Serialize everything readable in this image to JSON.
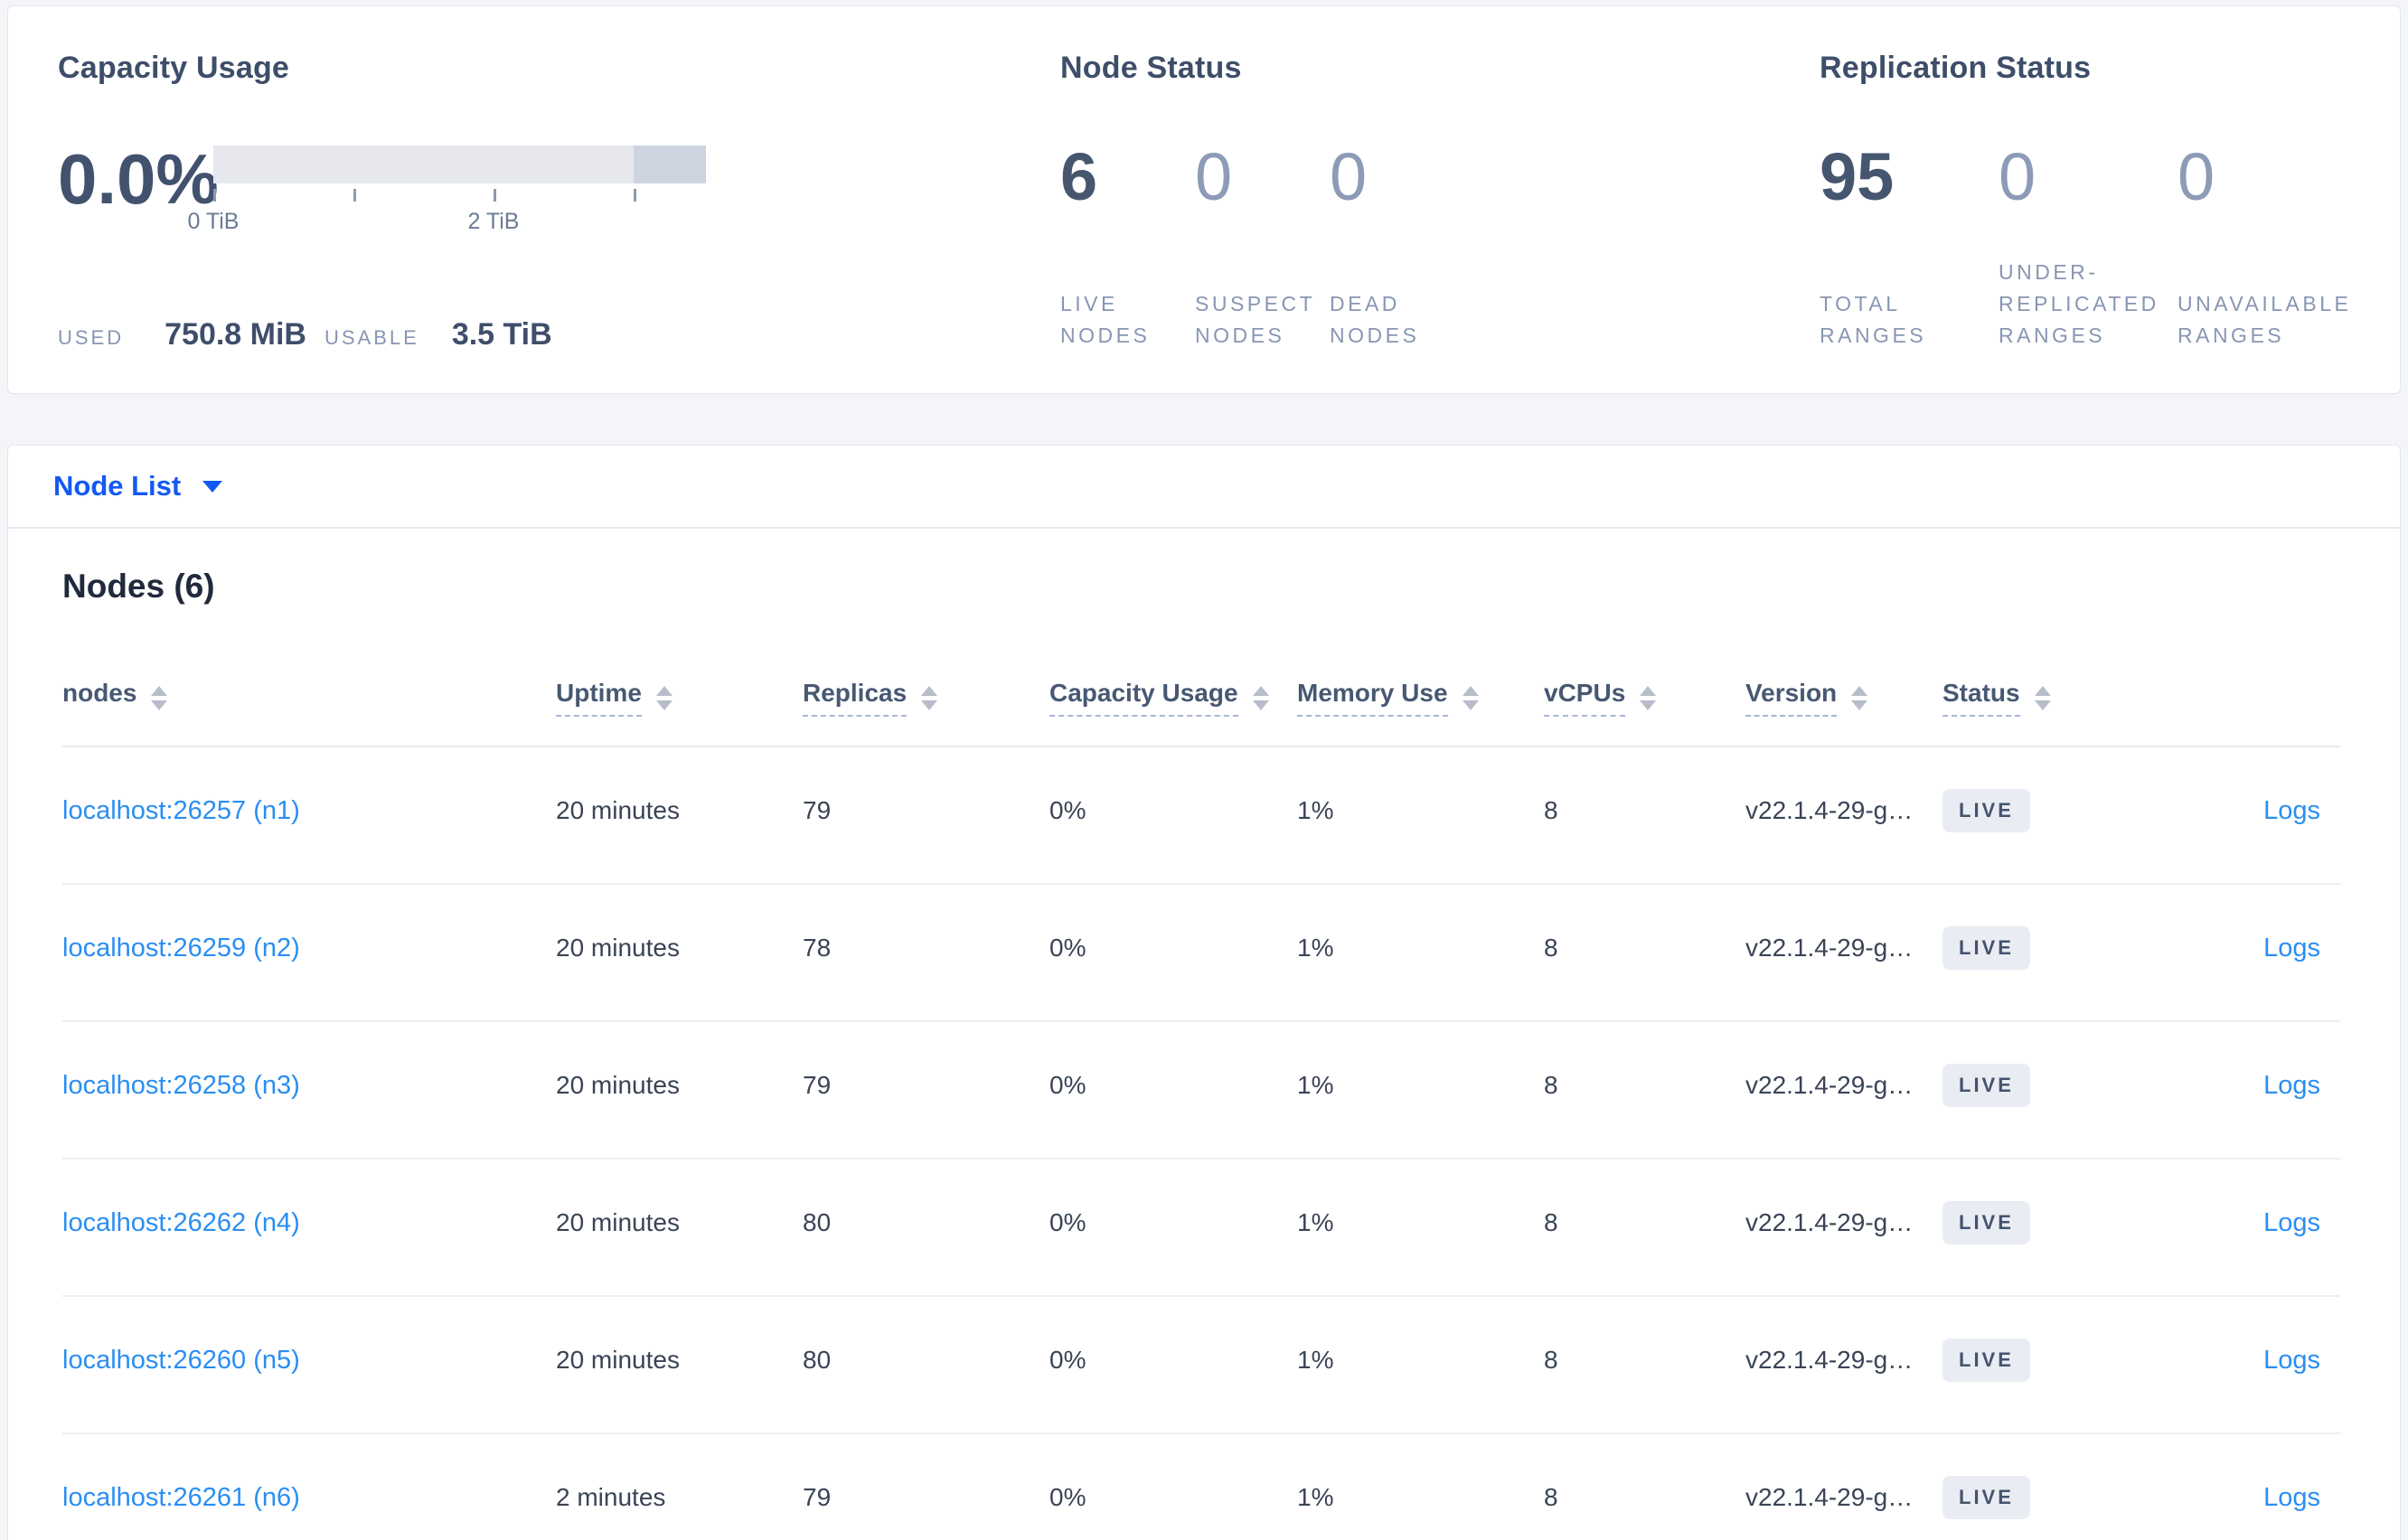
{
  "colors": {
    "action_blue": "#1259f5",
    "link_blue": "#2a8ef2",
    "badge_bg": "#e9ecf2",
    "badge_text": "#44536e",
    "bar_light": "#e6e8ee",
    "bar_dark": "#ced4df"
  },
  "capacity_panel": {
    "title": "Capacity Usage",
    "percent": "0.0%",
    "bar": {
      "dark_segment_start_pct": 85.32,
      "ticks": [
        {
          "pos_pct": 0,
          "label": "0 TiB"
        },
        {
          "pos_pct": 28.44,
          "label": ""
        },
        {
          "pos_pct": 56.88,
          "label": "2 TiB"
        },
        {
          "pos_pct": 85.32,
          "label": ""
        }
      ]
    },
    "used_label": "USED",
    "used_value": "750.8 MiB",
    "usable_label": "USABLE",
    "usable_value": "3.5 TiB"
  },
  "node_status_panel": {
    "title": "Node Status",
    "stats": [
      {
        "value": "6",
        "label": "LIVE NODES",
        "emphasized": true
      },
      {
        "value": "0",
        "label": "SUSPECT NODES",
        "emphasized": false
      },
      {
        "value": "0",
        "label": "DEAD NODES",
        "emphasized": false
      }
    ]
  },
  "replication_panel": {
    "title": "Replication Status",
    "stats": [
      {
        "value": "95",
        "label": "TOTAL RANGES",
        "emphasized": true
      },
      {
        "value": "0",
        "label": "UNDER-REPLICATED RANGES",
        "emphasized": false
      },
      {
        "value": "0",
        "label": "UNAVAILABLE RANGES",
        "emphasized": false
      }
    ]
  },
  "view_selector": {
    "label": "Node List"
  },
  "nodes_table": {
    "title": "Nodes (6)",
    "columns": [
      {
        "label": "nodes",
        "dashed": false,
        "sortable": true
      },
      {
        "label": "Uptime",
        "dashed": true,
        "sortable": true
      },
      {
        "label": "Replicas",
        "dashed": true,
        "sortable": true
      },
      {
        "label": "Capacity Usage",
        "dashed": true,
        "sortable": true
      },
      {
        "label": "Memory Use",
        "dashed": true,
        "sortable": true
      },
      {
        "label": "vCPUs",
        "dashed": true,
        "sortable": true
      },
      {
        "label": "Version",
        "dashed": true,
        "sortable": true
      },
      {
        "label": "Status",
        "dashed": true,
        "sortable": true
      },
      {
        "label": "",
        "dashed": false,
        "sortable": false
      }
    ],
    "rows": [
      {
        "node": "localhost:26257 (n1)",
        "uptime": "20 minutes",
        "replicas": "79",
        "capacity": "0%",
        "memory": "1%",
        "vcpus": "8",
        "version": "v22.1.4-29-g…",
        "status": "LIVE",
        "logs": "Logs"
      },
      {
        "node": "localhost:26259 (n2)",
        "uptime": "20 minutes",
        "replicas": "78",
        "capacity": "0%",
        "memory": "1%",
        "vcpus": "8",
        "version": "v22.1.4-29-g…",
        "status": "LIVE",
        "logs": "Logs"
      },
      {
        "node": "localhost:26258 (n3)",
        "uptime": "20 minutes",
        "replicas": "79",
        "capacity": "0%",
        "memory": "1%",
        "vcpus": "8",
        "version": "v22.1.4-29-g…",
        "status": "LIVE",
        "logs": "Logs"
      },
      {
        "node": "localhost:26262 (n4)",
        "uptime": "20 minutes",
        "replicas": "80",
        "capacity": "0%",
        "memory": "1%",
        "vcpus": "8",
        "version": "v22.1.4-29-g…",
        "status": "LIVE",
        "logs": "Logs"
      },
      {
        "node": "localhost:26260 (n5)",
        "uptime": "20 minutes",
        "replicas": "80",
        "capacity": "0%",
        "memory": "1%",
        "vcpus": "8",
        "version": "v22.1.4-29-g…",
        "status": "LIVE",
        "logs": "Logs"
      },
      {
        "node": "localhost:26261 (n6)",
        "uptime": "2 minutes",
        "replicas": "79",
        "capacity": "0%",
        "memory": "1%",
        "vcpus": "8",
        "version": "v22.1.4-29-g…",
        "status": "LIVE",
        "logs": "Logs"
      }
    ]
  }
}
